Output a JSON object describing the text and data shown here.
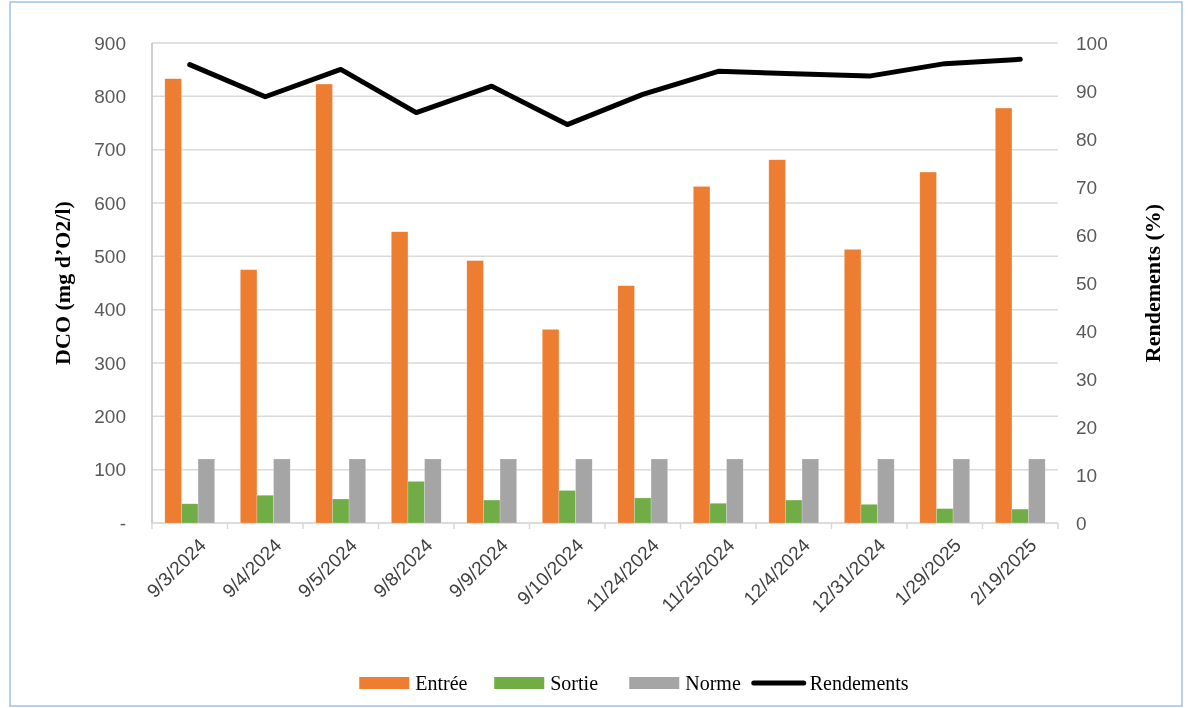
{
  "chart_data": {
    "type": "bar",
    "ylabel": "DCO (mg d’O2/l)",
    "y2label": "Rendements (%)",
    "categories": [
      "9/3/2024",
      "9/4/2024",
      "9/5/2024",
      "9/8/2024",
      "9/9/2024",
      "9/10/2024",
      "11/24/2024",
      "11/25/2024",
      "12/4/2024",
      "12/31/2024",
      "1/29/2025",
      "2/19/2025"
    ],
    "series": [
      {
        "name": "Entrée",
        "color": "#ed7d31",
        "values": [
          833,
          475,
          823,
          546,
          492,
          363,
          445,
          631,
          681,
          513,
          658,
          778
        ]
      },
      {
        "name": "Sortie",
        "color": "#70ad47",
        "values": [
          36,
          52,
          45,
          78,
          43,
          61,
          47,
          37,
          43,
          35,
          27,
          26
        ]
      },
      {
        "name": "Norme",
        "color": "#a5a5a5",
        "values": [
          120,
          120,
          120,
          120,
          120,
          120,
          120,
          120,
          120,
          120,
          120,
          120
        ]
      },
      {
        "name": "Rendements",
        "type": "line",
        "axis": "y2",
        "color": "#000000",
        "values": [
          95.5,
          88.8,
          94.5,
          85.5,
          91.0,
          83.0,
          89.3,
          94.1,
          93.6,
          93.1,
          95.7,
          96.6
        ]
      }
    ],
    "ylim": [
      0,
      900
    ],
    "yticks": [
      {
        "value": 0,
        "label": "-"
      },
      100,
      200,
      300,
      400,
      500,
      600,
      700,
      800,
      900
    ],
    "y2lim": [
      0,
      100
    ],
    "y2ticks": [
      0,
      10,
      20,
      30,
      40,
      50,
      60,
      70,
      80,
      90,
      100
    ],
    "grid": "y",
    "legend": "bottom",
    "marker": "none",
    "line_style": "solid"
  }
}
